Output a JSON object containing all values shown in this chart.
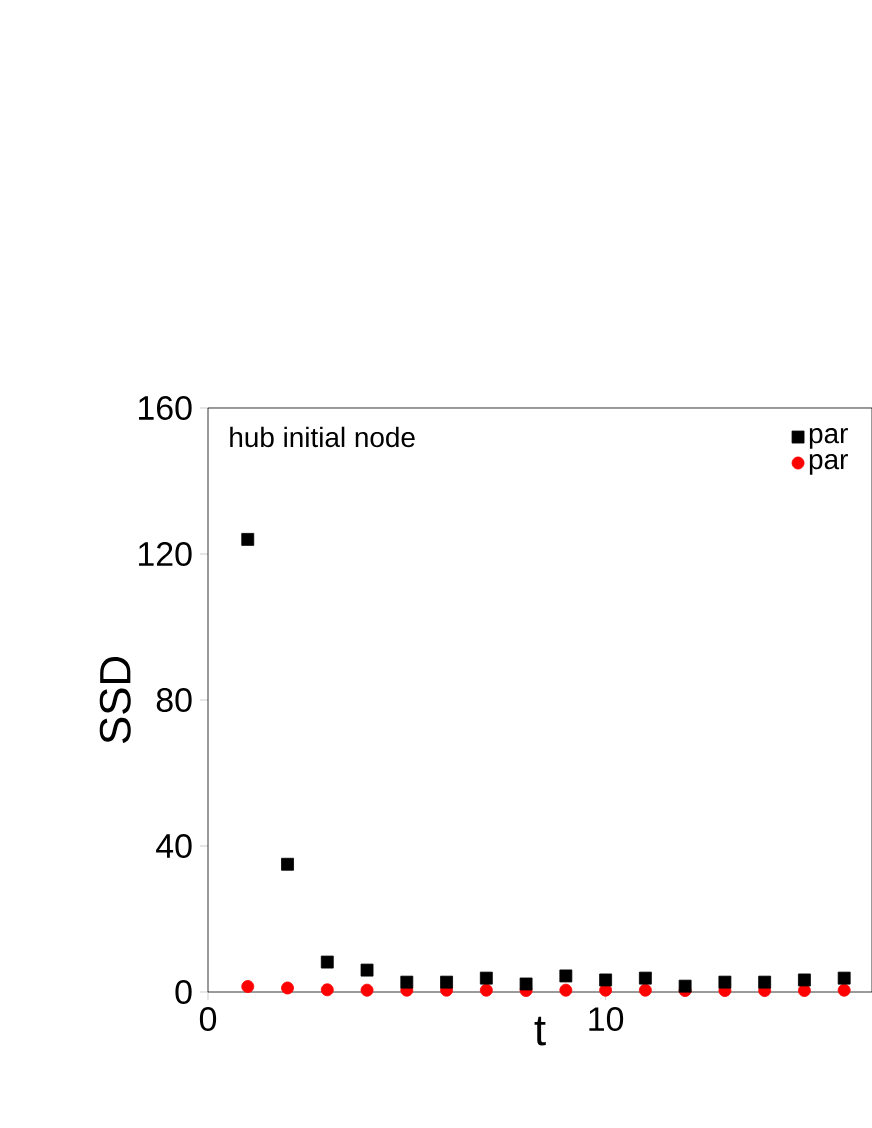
{
  "chart_data": {
    "type": "scatter",
    "xlabel": "t",
    "ylabel": "SSD",
    "annotations": [
      "hub initial node"
    ],
    "xlim": [
      0,
      16.7
    ],
    "xticks": [
      0,
      10
    ],
    "ylim": [
      0,
      160
    ],
    "yticks": [
      0,
      40,
      80,
      120,
      160
    ],
    "legend": "top right",
    "series": [
      {
        "name": "par",
        "color": "#000000",
        "marker": "square",
        "x": [
          1,
          2,
          3,
          4,
          5,
          6,
          7,
          8,
          9,
          10,
          11,
          12,
          13,
          14,
          15,
          16
        ],
        "values": [
          124,
          35,
          8.2,
          6,
          2.7,
          2.7,
          3.8,
          2.2,
          4.4,
          3.3,
          3.8,
          1.6,
          2.7,
          2.7,
          3.3,
          3.8
        ]
      },
      {
        "name": "par",
        "color": "#ff0000",
        "marker": "circle",
        "x": [
          1,
          2,
          3,
          4,
          5,
          6,
          7,
          8,
          9,
          10,
          11,
          12,
          13,
          14,
          15,
          16
        ],
        "values": [
          1.5,
          1.1,
          0.6,
          0.5,
          0.5,
          0.5,
          0.5,
          0.4,
          0.5,
          0.5,
          0.5,
          0.4,
          0.4,
          0.4,
          0.4,
          0.5
        ]
      }
    ]
  }
}
